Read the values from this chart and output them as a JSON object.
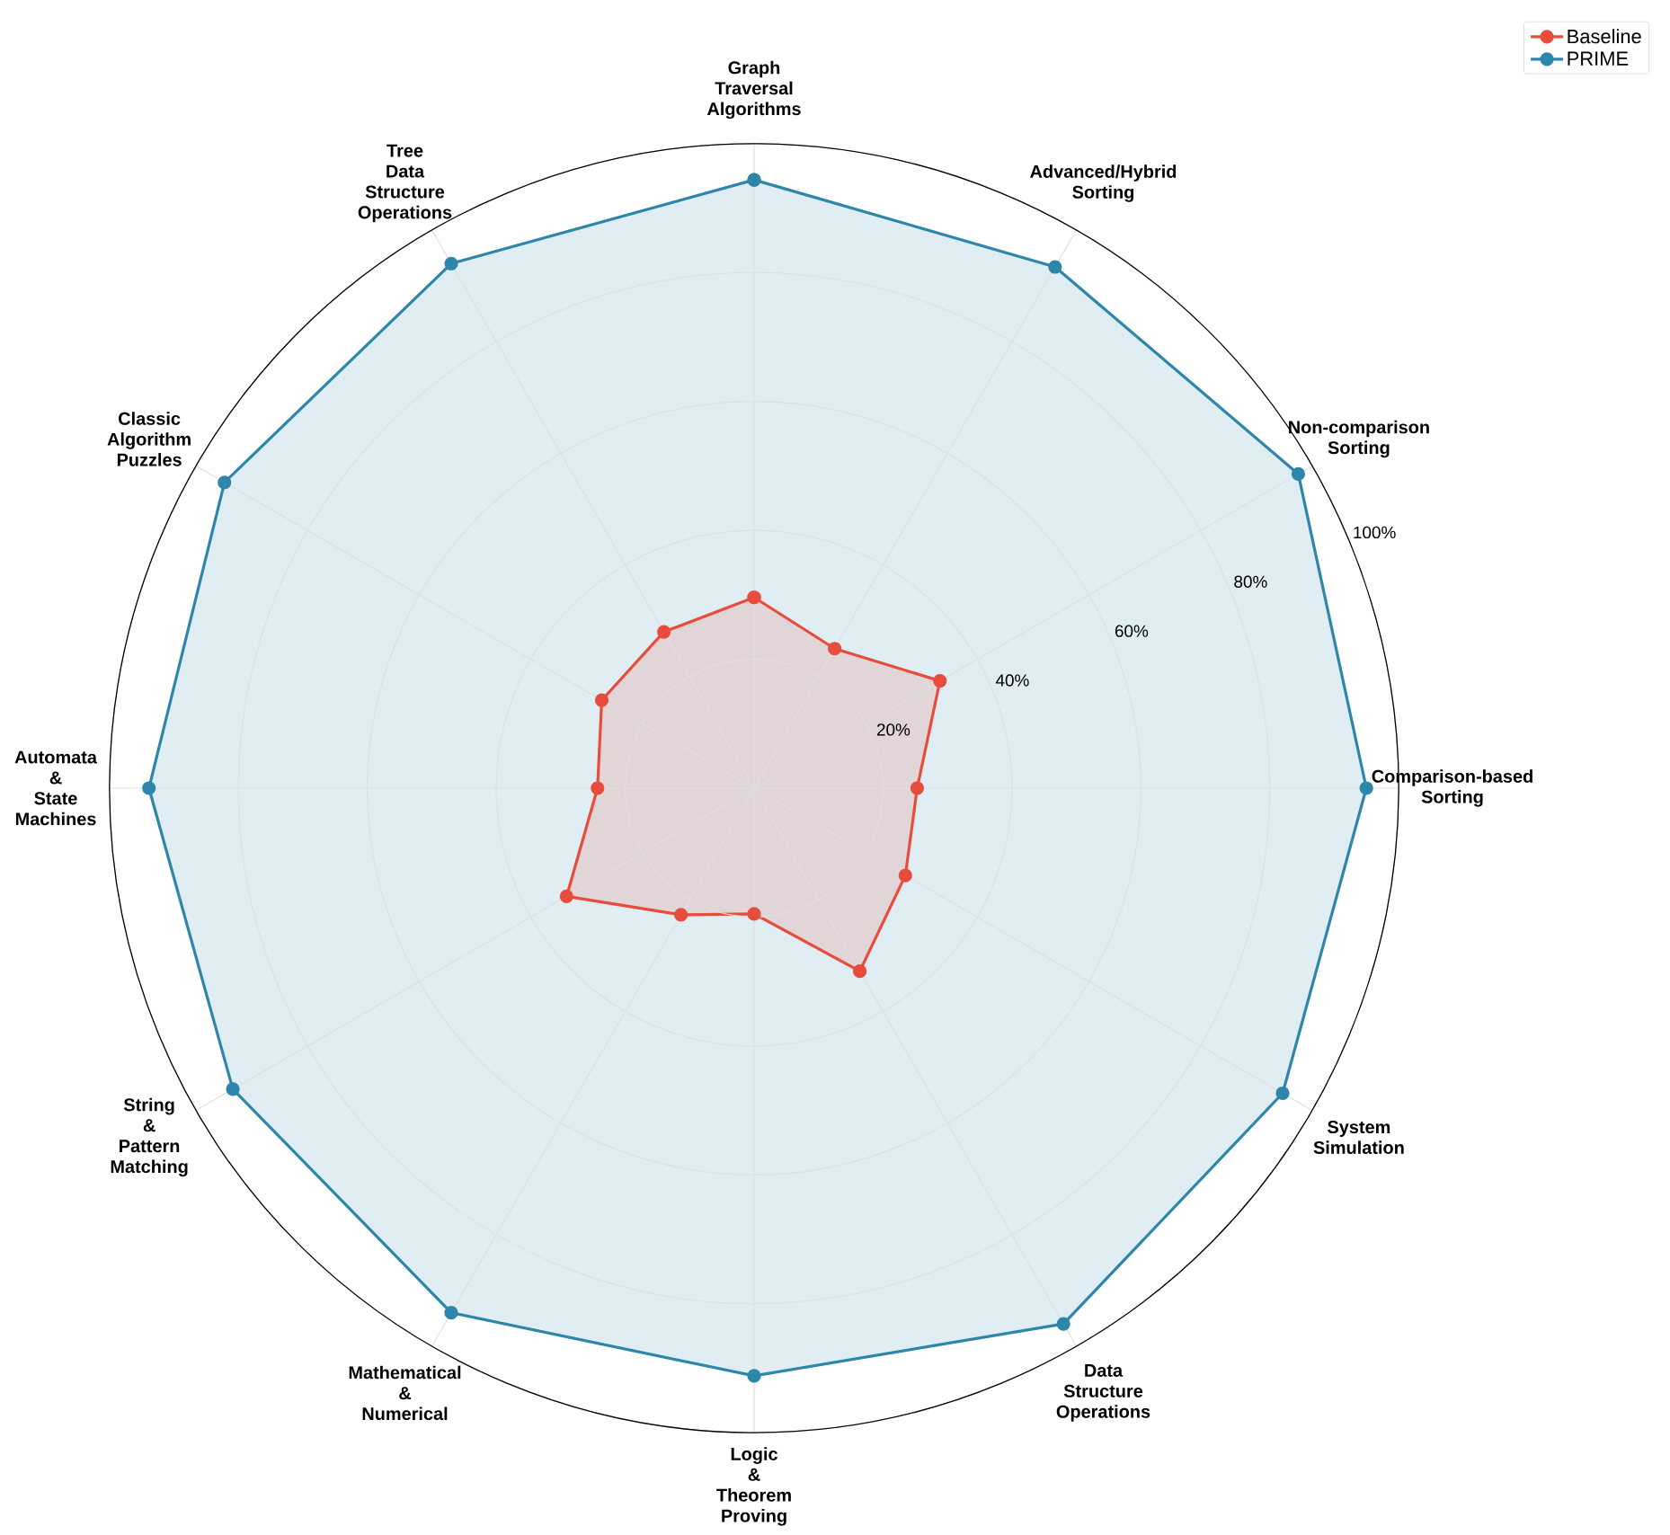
{
  "chart_data": {
    "type": "radar",
    "categories": [
      "Graph Traversal Algorithms",
      "Advanced/Hybrid Sorting",
      "Non-comparison Sorting",
      "Comparison-based Sorting",
      "System Simulation",
      "Data Structure Operations",
      "Logic & Theorem Proving",
      "Mathematical & Numerical",
      "String & Pattern Matching",
      "Automata & State Machines",
      "Classic Algorithm Puzzles",
      "Tree Data Structure Operations"
    ],
    "series": [
      {
        "name": "Baseline",
        "color": "#e74c3c",
        "values": [
          29.6,
          25,
          33.3,
          25.3,
          27.1,
          32.8,
          19.5,
          22.7,
          33.6,
          24.3,
          27.3,
          28
        ]
      },
      {
        "name": "PRIME",
        "color": "#2e86ab",
        "values": [
          94.4,
          93.4,
          97.5,
          95,
          94.7,
          96,
          91.2,
          94,
          93.4,
          93.9,
          94.9,
          94
        ]
      }
    ],
    "ylim": [
      0,
      100
    ],
    "yticks": [
      {
        "value": 20,
        "label": "20%"
      },
      {
        "value": 40,
        "label": "40%"
      },
      {
        "value": 60,
        "label": "60%"
      },
      {
        "value": 80,
        "label": "80%"
      },
      {
        "value": 100,
        "label": "100%"
      }
    ],
    "grid": true,
    "legend": "top right",
    "marker": "circle",
    "line_style": "solid"
  }
}
